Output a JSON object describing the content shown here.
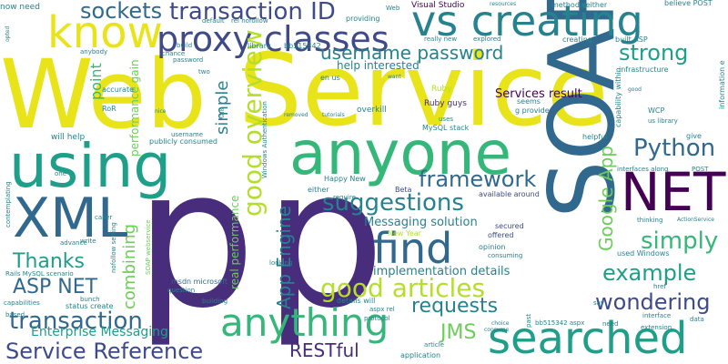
{
  "colors": {
    "background": "#ffffff",
    "yellow": "#e8e419",
    "lime": "#b5de2b",
    "green": "#6ccd5a",
    "teal_green": "#35b779",
    "teal": "#1f9e89",
    "blue_teal": "#26828e",
    "steel": "#31688e",
    "indigo": "#3e4a89",
    "violet": "#472d7b",
    "dark_purple": "#440154"
  },
  "words": [
    {
      "text": "Web",
      "color": "#e8e419"
    },
    {
      "text": "Service",
      "color": "#e8e419"
    },
    {
      "text": "p",
      "color": "#472d7b"
    },
    {
      "text": "p",
      "color": "#472d7b"
    },
    {
      "text": "SOAP",
      "color": "#31688e"
    },
    {
      "text": "anyone",
      "color": "#35b779"
    },
    {
      "text": "using",
      "color": "#1f9e89"
    },
    {
      "text": "XML",
      "color": "#31688e"
    },
    {
      "text": "NET",
      "color": "#440154"
    },
    {
      "text": "vs creating",
      "color": "#26828e"
    },
    {
      "text": "know",
      "color": "#e8e419"
    },
    {
      "text": "searched",
      "color": "#1f9e89"
    },
    {
      "text": "anything",
      "color": "#35b779"
    },
    {
      "text": "find",
      "color": "#31688e"
    },
    {
      "text": "proxy classes",
      "color": "#3e4a89"
    },
    {
      "text": "transaction ID",
      "color": "#3e4a89"
    },
    {
      "text": "sockets",
      "color": "#31688e"
    },
    {
      "text": "good overview",
      "color": "#b5de2b"
    },
    {
      "text": "good articles",
      "color": "#b5de2b"
    },
    {
      "text": "suggestions",
      "color": "#26828e"
    },
    {
      "text": "framework",
      "color": "#31688e"
    },
    {
      "text": "Python",
      "color": "#31688e"
    },
    {
      "text": "simply",
      "color": "#35b779"
    },
    {
      "text": "example",
      "color": "#1f9e89"
    },
    {
      "text": "wondering",
      "color": "#3e4a89"
    },
    {
      "text": "Service Reference",
      "color": "#3e4a89"
    },
    {
      "text": "transaction",
      "color": "#31688e"
    },
    {
      "text": "Thanks",
      "color": "#1f9e89"
    },
    {
      "text": "ASP NET",
      "color": "#31688e"
    },
    {
      "text": "requests",
      "color": "#26828e"
    },
    {
      "text": "RESTful",
      "color": "#472d7b"
    },
    {
      "text": "JMS",
      "color": "#6ccd5a"
    },
    {
      "text": "username password",
      "color": "#26828e"
    },
    {
      "text": "strong",
      "color": "#1f9e89"
    },
    {
      "text": "App Engine",
      "color": "#26828e"
    },
    {
      "text": "Google App",
      "color": "#6ccd5a"
    },
    {
      "text": "simple",
      "color": "#26828e"
    },
    {
      "text": "point",
      "color": "#35b779"
    },
    {
      "text": "combining",
      "color": "#6ccd5a"
    },
    {
      "text": "Enterprise Messaging",
      "color": "#1f9e89"
    },
    {
      "text": "Messaging solution",
      "color": "#26828e"
    },
    {
      "text": "implementation details",
      "color": "#26828e"
    },
    {
      "text": "Services result",
      "color": "#440154"
    },
    {
      "text": "help interested",
      "color": "#26828e"
    },
    {
      "text": "performance gain",
      "color": "#6ccd5a"
    },
    {
      "text": "real performance",
      "color": "#6ccd5a"
    },
    {
      "text": "now need",
      "color": "#26828e"
    },
    {
      "text": "Visual Studio",
      "color": "#440154"
    },
    {
      "text": "providing",
      "color": "#26828e"
    },
    {
      "text": "methods either",
      "color": "#26828e"
    },
    {
      "text": "believe POST",
      "color": "#26828e"
    },
    {
      "text": "creating",
      "color": "#26828e"
    },
    {
      "text": "built ASP",
      "color": "#26828e"
    },
    {
      "text": "infrastructure",
      "color": "#26828e"
    },
    {
      "text": "capability within",
      "color": "#26828e"
    },
    {
      "text": "information e",
      "color": "#26828e"
    },
    {
      "text": "overkill",
      "color": "#26828e"
    },
    {
      "text": "Ruby guys",
      "color": "#472d7b"
    },
    {
      "text": "MySQL stack",
      "color": "#26828e"
    },
    {
      "text": "will help",
      "color": "#26828e"
    },
    {
      "text": "publicly consumed",
      "color": "#26828e"
    },
    {
      "text": "username",
      "color": "#26828e"
    },
    {
      "text": "RoR",
      "color": "#26828e"
    },
    {
      "text": "accurate",
      "color": "#26828e"
    },
    {
      "text": "password",
      "color": "#26828e"
    },
    {
      "text": "library",
      "color": "#26828e"
    },
    {
      "text": "bb515342",
      "color": "#26828e"
    },
    {
      "text": "build",
      "color": "#26828e"
    },
    {
      "text": "chance",
      "color": "#26828e"
    },
    {
      "text": "default",
      "color": "#26828e"
    },
    {
      "text": "rel nofollow",
      "color": "#26828e"
    },
    {
      "text": "really new",
      "color": "#26828e"
    },
    {
      "text": "explored",
      "color": "#26828e"
    },
    {
      "text": "en us",
      "color": "#26828e"
    },
    {
      "text": "Ruby",
      "color": "#b5de2b"
    },
    {
      "text": "seems",
      "color": "#26828e"
    },
    {
      "text": "g provide",
      "color": "#26828e"
    },
    {
      "text": "WCP",
      "color": "#26828e"
    },
    {
      "text": "us library",
      "color": "#26828e"
    },
    {
      "text": "give",
      "color": "#26828e"
    },
    {
      "text": "helpful",
      "color": "#26828e"
    },
    {
      "text": "interfaces along",
      "color": "#26828e"
    },
    {
      "text": "POST",
      "color": "#26828e"
    },
    {
      "text": "ActionService",
      "color": "#26828e"
    },
    {
      "text": "thinking",
      "color": "#26828e"
    },
    {
      "text": "used Windows",
      "color": "#26828e"
    },
    {
      "text": "Happy New",
      "color": "#26828e"
    },
    {
      "text": "New Year",
      "color": "#b5de2b"
    },
    {
      "text": "Beta",
      "color": "#3e4a89"
    },
    {
      "text": "available around",
      "color": "#3e4a89"
    },
    {
      "text": "secured",
      "color": "#3e4a89"
    },
    {
      "text": "offered",
      "color": "#3e4a89"
    },
    {
      "text": "opinion",
      "color": "#26828e"
    },
    {
      "text": "consuming",
      "color": "#26828e"
    },
    {
      "text": "either",
      "color": "#26828e"
    },
    {
      "text": "require",
      "color": "#26828e"
    },
    {
      "text": "looking",
      "color": "#26828e"
    },
    {
      "text": "Windows Authentication",
      "color": "#26828e"
    },
    {
      "text": "msdn microsoft",
      "color": "#31688e"
    },
    {
      "text": "question",
      "color": "#26828e"
    },
    {
      "text": "building",
      "color": "#26828e"
    },
    {
      "text": "details will",
      "color": "#26828e"
    },
    {
      "text": "aspx rel",
      "color": "#26828e"
    },
    {
      "text": "protocol",
      "color": "#26828e"
    },
    {
      "text": "choice",
      "color": "#26828e"
    },
    {
      "text": "consume",
      "color": "#26828e"
    },
    {
      "text": "article",
      "color": "#26828e"
    },
    {
      "text": "application",
      "color": "#26828e"
    },
    {
      "text": "bb515342 aspx",
      "color": "#26828e"
    },
    {
      "text": "need",
      "color": "#26828e"
    },
    {
      "text": "interface",
      "color": "#26828e"
    },
    {
      "text": "extension",
      "color": "#26828e"
    },
    {
      "text": "data",
      "color": "#26828e"
    },
    {
      "text": "href",
      "color": "#26828e"
    },
    {
      "text": "say",
      "color": "#26828e"
    },
    {
      "text": "past",
      "color": "#26828e"
    },
    {
      "text": "status create",
      "color": "#26828e"
    },
    {
      "text": "bunch",
      "color": "#26828e"
    },
    {
      "text": "capabilities",
      "color": "#26828e"
    },
    {
      "text": "based",
      "color": "#26828e"
    },
    {
      "text": "Rails MySQL scenario",
      "color": "#26828e"
    },
    {
      "text": "advance",
      "color": "#26828e"
    },
    {
      "text": "write",
      "color": "#26828e"
    },
    {
      "text": "caller",
      "color": "#26828e"
    },
    {
      "text": "contemplating",
      "color": "#26828e"
    },
    {
      "text": "one",
      "color": "#26828e"
    },
    {
      "text": "nofollow setting",
      "color": "#26828e"
    },
    {
      "text": "SOAP webservice",
      "color": "#26828e"
    },
    {
      "text": "opted",
      "color": "#26828e"
    },
    {
      "text": "anybody",
      "color": "#26828e"
    },
    {
      "text": "two",
      "color": "#26828e"
    },
    {
      "text": "want",
      "color": "#26828e"
    },
    {
      "text": "removed",
      "color": "#26828e"
    },
    {
      "text": "uses",
      "color": "#26828e"
    },
    {
      "text": "good",
      "color": "#26828e"
    },
    {
      "text": "resources",
      "color": "#26828e"
    },
    {
      "text": "Web",
      "color": "#26828e"
    },
    {
      "text": "nice",
      "color": "#26828e"
    },
    {
      "text": "Rails",
      "color": "#26828e"
    },
    {
      "text": "tutorials",
      "color": "#26828e"
    }
  ]
}
